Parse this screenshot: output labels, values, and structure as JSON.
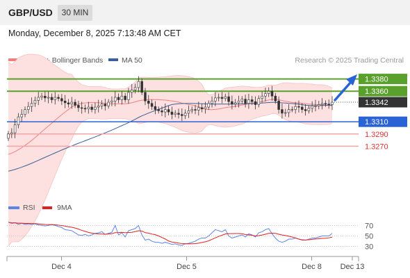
{
  "header": {
    "pair": "GBP/USD",
    "timeframe": "30 MIN",
    "datetime": "Monday, December 8, 2025 7:13:48 AM CET"
  },
  "legend": {
    "bollinger": "MA 20 + Bollinger Bands",
    "ma50": "MA 50",
    "credit": "Research © 2025 Trading Central",
    "rsi": "RSI",
    "rsi_ma": "9MA"
  },
  "colors": {
    "resistance": "#5aa02c",
    "current": "#333333",
    "pivot": "#2a63d6",
    "support": "#e03030",
    "support_line": "#f2a5a5",
    "bollinger_fill": "#fde0e0",
    "bollinger_line": "#f08080",
    "ma50": "#3a5f9a",
    "candle_up": "#ffffff",
    "candle_down": "#333333",
    "rsi": "#5b86e5",
    "rsi_ma": "#e02020",
    "arrow": "#2a63d6"
  },
  "levels": [
    {
      "label": "1.3380",
      "value": 1.338,
      "kind": "resistance"
    },
    {
      "label": "1.3360",
      "value": 1.336,
      "kind": "resistance"
    },
    {
      "label": "1.3342",
      "value": 1.3342,
      "kind": "current"
    },
    {
      "label": "1.3310",
      "value": 1.331,
      "kind": "pivot"
    },
    {
      "label": "1.3290",
      "value": 1.329,
      "kind": "support"
    },
    {
      "label": "1.3270",
      "value": 1.327,
      "kind": "support"
    }
  ],
  "chart_data": {
    "type": "line",
    "title": "GBP/USD",
    "price_range": [
      1.32,
      1.34
    ],
    "x_range": [
      0,
      112
    ],
    "candle_count": 98,
    "x_ticks": [
      {
        "label": "Dec 4",
        "x": 17
      },
      {
        "label": "Dec 5",
        "x": 57
      },
      {
        "label": "Dec 8",
        "x": 97
      },
      {
        "label": "Dec 13",
        "x": 110
      }
    ],
    "close": [
      1.329,
      1.3292,
      1.3305,
      1.3318,
      1.3322,
      1.333,
      1.3335,
      1.334,
      1.3345,
      1.335,
      1.3352,
      1.3349,
      1.335,
      1.3346,
      1.335,
      1.3348,
      1.3344,
      1.3341,
      1.3339,
      1.3342,
      1.3337,
      1.3333,
      1.3332,
      1.3331,
      1.3334,
      1.333,
      1.3334,
      1.3336,
      1.3339,
      1.3336,
      1.3342,
      1.3344,
      1.335,
      1.3346,
      1.3352,
      1.3346,
      1.3358,
      1.3362,
      1.3366,
      1.3376,
      1.3358,
      1.3344,
      1.334,
      1.3335,
      1.333,
      1.3328,
      1.3326,
      1.333,
      1.3326,
      1.3322,
      1.3324,
      1.3322,
      1.332,
      1.3324,
      1.3328,
      1.333,
      1.3329,
      1.3333,
      1.3331,
      1.3334,
      1.334,
      1.3344,
      1.3349,
      1.335,
      1.3348,
      1.3351,
      1.3343,
      1.3339,
      1.3341,
      1.3344,
      1.3347,
      1.334,
      1.3346,
      1.3343,
      1.3338,
      1.3348,
      1.3352,
      1.3356,
      1.336,
      1.3352,
      1.3344,
      1.333,
      1.3324,
      1.3325,
      1.333,
      1.333,
      1.3335,
      1.3334,
      1.333,
      1.3328,
      1.3332,
      1.3336,
      1.3336,
      1.3338,
      1.334,
      1.3339,
      1.3338,
      1.3342
    ],
    "ma20_start": 1.3255,
    "ma50_start": 1.3228,
    "rsi": {
      "levels": [
        70,
        50,
        30
      ],
      "range": [
        15,
        85
      ],
      "values": [
        76,
        74,
        75,
        72,
        74,
        72,
        73,
        72,
        73,
        71,
        70,
        69,
        70,
        72,
        70,
        68,
        66,
        62,
        61,
        60,
        56,
        52,
        51,
        53,
        50,
        52,
        55,
        56,
        58,
        53,
        55,
        57,
        70,
        52,
        56,
        48,
        60,
        62,
        64,
        70,
        52,
        42,
        44,
        40,
        38,
        38,
        36,
        38,
        36,
        34,
        35,
        33,
        32,
        35,
        36,
        38,
        40,
        44,
        46,
        46,
        50,
        56,
        62,
        60,
        58,
        62,
        50,
        46,
        48,
        50,
        52,
        48,
        54,
        52,
        48,
        56,
        58,
        62,
        64,
        54,
        46,
        40,
        38,
        40,
        44,
        44,
        46,
        44,
        42,
        42,
        44,
        46,
        46,
        48,
        50,
        50,
        50,
        55
      ]
    }
  }
}
